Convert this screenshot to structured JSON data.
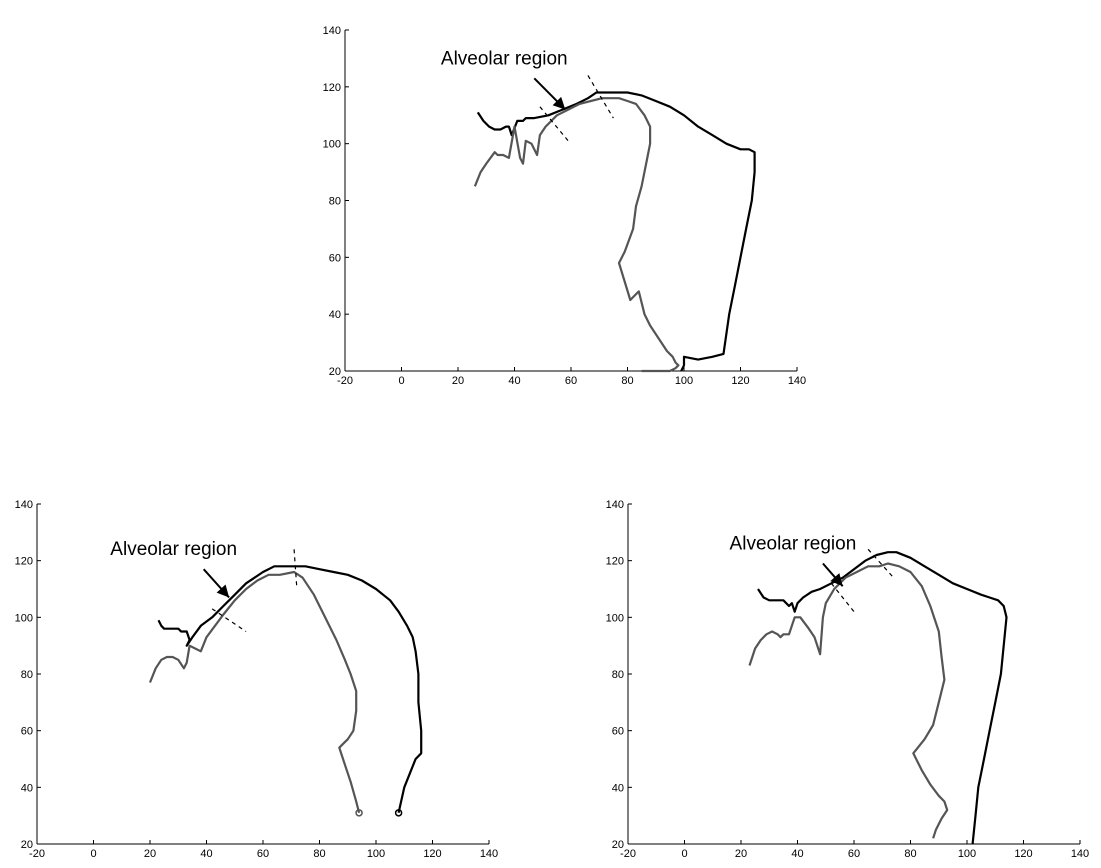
{
  "chart_data": [
    {
      "type": "line",
      "title": "",
      "xlabel": "",
      "ylabel": "",
      "xlim": [
        -20,
        140
      ],
      "ylim": [
        20,
        140
      ],
      "xticks": [
        "-20",
        "0",
        "20",
        "40",
        "60",
        "80",
        "100",
        "120",
        "140"
      ],
      "yticks": [
        "20",
        "40",
        "60",
        "80",
        "100",
        "120",
        "140"
      ],
      "grid": false,
      "annotation": {
        "text": "Alveolar region",
        "arrow_from": [
          47,
          123
        ],
        "arrow_to": [
          58,
          112
        ]
      },
      "markers": [
        {
          "from": [
            49,
            113
          ],
          "to": [
            59,
            101
          ]
        },
        {
          "from": [
            66,
            124
          ],
          "to": [
            75,
            109
          ]
        }
      ],
      "series": [
        {
          "color": "#000000",
          "x": [
            27,
            29,
            31,
            33,
            35,
            37,
            38,
            39,
            41,
            43,
            44,
            47,
            52,
            57,
            62,
            66,
            69,
            71,
            75,
            80,
            85,
            90,
            95,
            100,
            105,
            110,
            115,
            120,
            123,
            125,
            125,
            124,
            122,
            120,
            118,
            116,
            114,
            110,
            105,
            100,
            100,
            99
          ],
          "y": [
            111,
            108,
            106,
            105,
            105,
            106,
            106,
            103,
            108,
            108,
            109,
            109,
            110,
            112,
            114,
            116,
            118,
            118,
            118,
            118,
            117,
            115,
            113,
            110,
            106,
            103,
            100,
            98,
            98,
            97,
            90,
            80,
            70,
            60,
            50,
            40,
            26,
            25,
            24,
            25,
            22,
            20
          ]
        },
        {
          "color": "#555555",
          "x": [
            26,
            28,
            30,
            33,
            34,
            36,
            38,
            40,
            42,
            43,
            44,
            46,
            48,
            49,
            51,
            55,
            59,
            63,
            67,
            71,
            74,
            77,
            80,
            83,
            86,
            88,
            88,
            87,
            85,
            83,
            82,
            79,
            77,
            81,
            84,
            86,
            88,
            92,
            94,
            96,
            97,
            98,
            97,
            95,
            93,
            92,
            90,
            88,
            87,
            86,
            85
          ],
          "y": [
            85,
            90,
            93,
            97,
            96,
            96,
            95,
            106,
            95,
            93,
            101,
            100,
            96,
            103,
            106,
            110,
            112,
            114,
            115,
            116,
            116,
            116,
            115,
            114,
            110,
            106,
            100,
            95,
            85,
            78,
            70,
            62,
            58,
            45,
            48,
            40,
            36,
            30,
            27,
            25,
            23,
            22,
            21,
            20,
            20,
            20,
            20,
            20,
            20,
            20,
            20
          ]
        }
      ]
    },
    {
      "type": "line",
      "title": "",
      "xlabel": "",
      "ylabel": "",
      "xlim": [
        -20,
        140
      ],
      "ylim": [
        20,
        140
      ],
      "xticks": [
        "-20",
        "0",
        "20",
        "40",
        "60",
        "80",
        "100",
        "120",
        "140"
      ],
      "yticks": [
        "20",
        "40",
        "60",
        "80",
        "100",
        "120",
        "140"
      ],
      "grid": false,
      "annotation": {
        "text": "Alveolar region",
        "arrow_from": [
          39,
          117
        ],
        "arrow_to": [
          48,
          107
        ]
      },
      "markers": [
        {
          "from": [
            42,
            103
          ],
          "to": [
            54,
            95
          ]
        },
        {
          "from": [
            71,
            124
          ],
          "to": [
            72,
            110
          ]
        }
      ],
      "series": [
        {
          "color": "#000000",
          "x": [
            23,
            24,
            25,
            27,
            29,
            30,
            31,
            33,
            34,
            33,
            35,
            38,
            42,
            46,
            50,
            54,
            57,
            60,
            64,
            70,
            75,
            80,
            85,
            90,
            95,
            100,
            105,
            108,
            111,
            113,
            114,
            115,
            115,
            116,
            116,
            114,
            110,
            108
          ],
          "y": [
            99,
            97,
            96,
            96,
            96,
            96,
            95,
            95,
            92,
            90,
            93,
            97,
            100,
            104,
            108,
            112,
            114,
            116,
            118,
            118,
            118,
            117,
            116,
            115,
            113,
            110,
            106,
            102,
            97,
            93,
            88,
            80,
            70,
            60,
            52,
            50,
            40,
            31
          ]
        },
        {
          "color": "#555555",
          "x": [
            20,
            22,
            24,
            26,
            28,
            30,
            32,
            33,
            34,
            36,
            38,
            40,
            43,
            46,
            50,
            54,
            58,
            62,
            66,
            71,
            74,
            78,
            82,
            86,
            89,
            91,
            93,
            93,
            92,
            90,
            88,
            87,
            89,
            91,
            93,
            94
          ],
          "y": [
            77,
            82,
            85,
            86,
            86,
            85,
            82,
            84,
            90,
            89,
            88,
            93,
            97,
            101,
            106,
            110,
            113,
            115,
            115,
            116,
            114,
            108,
            100,
            92,
            85,
            80,
            74,
            67,
            60,
            57,
            55,
            54,
            48,
            42,
            35,
            31
          ]
        }
      ]
    },
    {
      "type": "line",
      "title": "",
      "xlabel": "",
      "ylabel": "",
      "xlim": [
        -20,
        140
      ],
      "ylim": [
        20,
        140
      ],
      "xticks": [
        "-20",
        "0",
        "20",
        "40",
        "60",
        "80",
        "100",
        "120",
        "140"
      ],
      "yticks": [
        "20",
        "40",
        "60",
        "80",
        "100",
        "120",
        "140"
      ],
      "grid": false,
      "annotation": {
        "text": "Alveolar region",
        "arrow_from": [
          49,
          119
        ],
        "arrow_to": [
          56,
          111
        ]
      },
      "markers": [
        {
          "from": [
            52,
            112
          ],
          "to": [
            60,
            102
          ]
        },
        {
          "from": [
            65,
            124
          ],
          "to": [
            74,
            114
          ]
        }
      ],
      "series": [
        {
          "color": "#000000",
          "x": [
            26,
            28,
            30,
            33,
            35,
            37,
            38,
            39,
            40,
            42,
            45,
            48,
            52,
            56,
            60,
            64,
            68,
            72,
            75,
            80,
            85,
            90,
            95,
            100,
            105,
            108,
            111,
            113,
            114,
            113,
            112,
            110,
            108,
            106,
            104,
            103,
            102
          ],
          "y": [
            110,
            107,
            106,
            106,
            106,
            104,
            105,
            102,
            105,
            107,
            109,
            110,
            112,
            114,
            117,
            120,
            122,
            123,
            123,
            121,
            118,
            115,
            112,
            110,
            108,
            107,
            106,
            104,
            100,
            90,
            80,
            70,
            60,
            50,
            40,
            30,
            20
          ]
        },
        {
          "color": "#555555",
          "x": [
            23,
            25,
            27,
            29,
            31,
            33,
            34,
            35,
            37,
            39,
            41,
            44,
            46,
            48,
            49,
            50,
            53,
            57,
            61,
            65,
            69,
            72,
            76,
            80,
            84,
            87,
            90,
            91,
            92,
            90,
            88,
            85,
            81,
            84,
            87,
            90,
            92,
            93,
            91,
            89,
            88
          ],
          "y": [
            83,
            89,
            92,
            94,
            95,
            94,
            93,
            94,
            94,
            100,
            100,
            96,
            93,
            87,
            100,
            105,
            110,
            114,
            116,
            118,
            118,
            119,
            118,
            116,
            111,
            104,
            95,
            86,
            78,
            70,
            62,
            57,
            52,
            46,
            41,
            37,
            35,
            32,
            29,
            25,
            22
          ]
        }
      ]
    }
  ]
}
